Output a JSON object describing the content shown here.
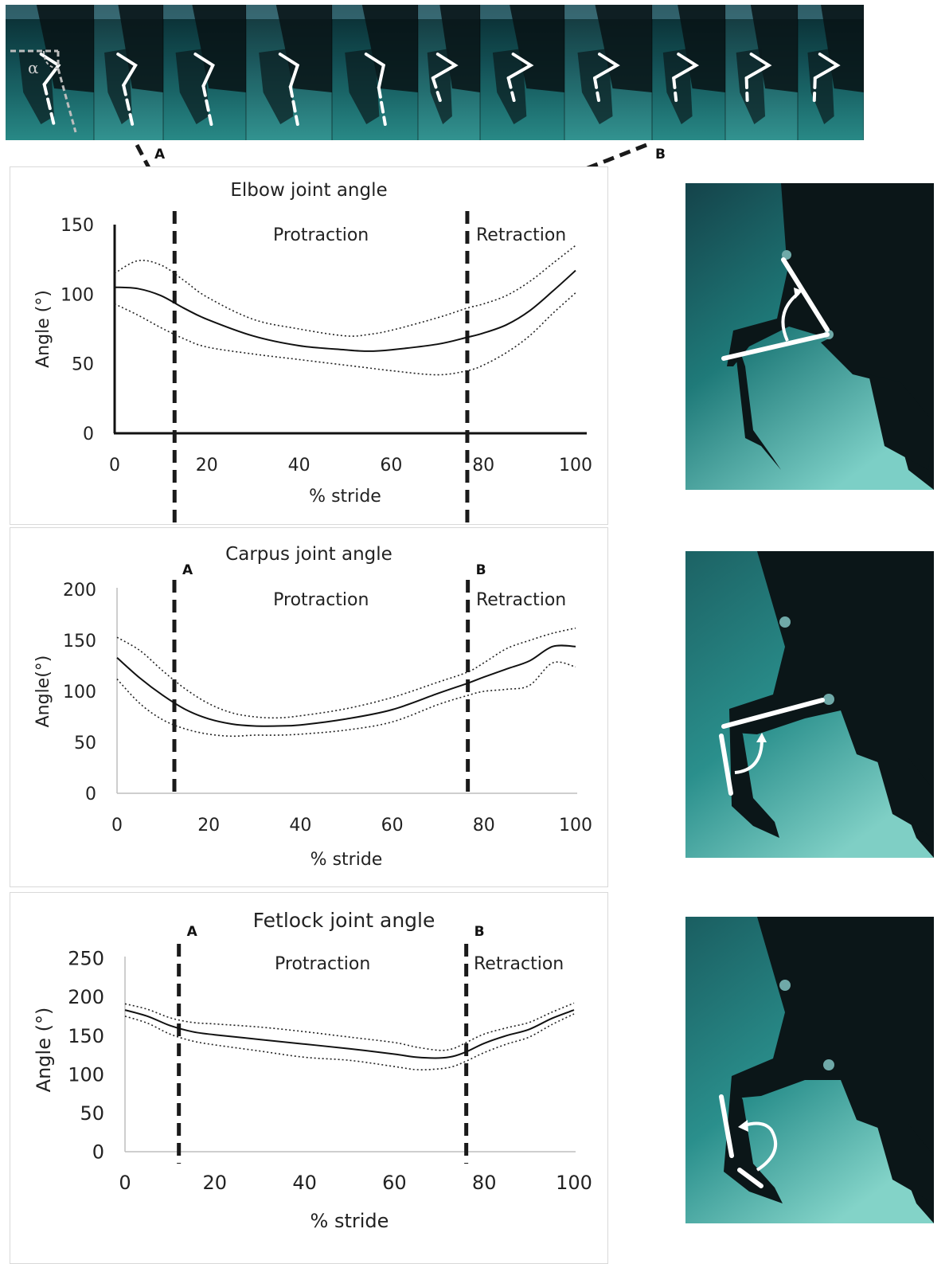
{
  "top_strip": {
    "alpha_symbol": "α",
    "marker_a": "A",
    "marker_b": "B",
    "frame_count": 11
  },
  "colors": {
    "water_dark": "#0b3438",
    "water_light": "#2a8f8c",
    "limb": "#0a1416",
    "overlay": "#ffffff",
    "mean_line": "#111111",
    "sd_line": "#222222"
  },
  "chart_data": [
    {
      "type": "line",
      "title": "Elbow joint angle",
      "xlabel": "% stride",
      "ylabel": "Angle (°)",
      "xlim": [
        0,
        100
      ],
      "ylim": [
        0,
        150
      ],
      "xticks": [
        "0",
        "20",
        "40",
        "60",
        "80",
        "100"
      ],
      "yticks": [
        "0",
        "50",
        "100",
        "150"
      ],
      "phase_labels": [
        "Protraction",
        "Retraction"
      ],
      "marker_labels": [
        "",
        ""
      ],
      "phase_lines_x": [
        13,
        76.5
      ],
      "series": [
        {
          "style": "solid",
          "x": [
            0,
            5,
            10,
            15,
            20,
            30,
            40,
            50,
            55,
            60,
            70,
            76.5,
            80,
            85,
            90,
            95,
            100
          ],
          "y": [
            105,
            104,
            99,
            90,
            82,
            70,
            63,
            60,
            59,
            60,
            64,
            69,
            72,
            78,
            88,
            102,
            117
          ]
        },
        {
          "style": "dotted",
          "x": [
            0,
            5,
            10,
            15,
            20,
            30,
            40,
            50,
            55,
            60,
            70,
            76.5,
            80,
            85,
            90,
            95,
            100
          ],
          "y": [
            115,
            124,
            121,
            110,
            98,
            82,
            75,
            70,
            71,
            74,
            83,
            90,
            93,
            99,
            109,
            122,
            135
          ]
        },
        {
          "style": "dotted",
          "x": [
            0,
            5,
            10,
            15,
            20,
            30,
            40,
            50,
            55,
            60,
            70,
            76.5,
            80,
            85,
            90,
            95,
            100
          ],
          "y": [
            93,
            85,
            76,
            68,
            62,
            57,
            53,
            49,
            47,
            45,
            42,
            45,
            49,
            58,
            70,
            86,
            101
          ]
        }
      ]
    },
    {
      "type": "line",
      "title": "Carpus joint angle",
      "xlabel": "% stride",
      "ylabel": "Angle(°)",
      "xlim": [
        0,
        100
      ],
      "ylim": [
        0,
        200
      ],
      "xticks": [
        "0",
        "20",
        "40",
        "60",
        "80",
        "100"
      ],
      "yticks": [
        "0",
        "50",
        "100",
        "150",
        "200"
      ],
      "phase_labels": [
        "Protraction",
        "Retraction"
      ],
      "marker_labels": [
        "A",
        "B"
      ],
      "phase_lines_x": [
        12.5,
        76.5
      ],
      "series": [
        {
          "style": "solid",
          "x": [
            0,
            5,
            10,
            15,
            20,
            25,
            30,
            35,
            40,
            50,
            60,
            70,
            76.5,
            80,
            85,
            90,
            95,
            100
          ],
          "y": [
            133,
            113,
            96,
            82,
            73,
            68,
            66,
            66,
            67,
            73,
            82,
            98,
            108,
            114,
            122,
            130,
            144,
            144
          ]
        },
        {
          "style": "dotted",
          "x": [
            0,
            5,
            10,
            15,
            20,
            25,
            30,
            35,
            40,
            50,
            60,
            70,
            76.5,
            80,
            85,
            90,
            95,
            100
          ],
          "y": [
            153,
            140,
            120,
            102,
            88,
            79,
            75,
            74,
            76,
            83,
            94,
            109,
            119,
            128,
            142,
            150,
            157,
            162
          ]
        },
        {
          "style": "dotted",
          "x": [
            0,
            5,
            10,
            15,
            20,
            25,
            30,
            35,
            40,
            50,
            60,
            70,
            76.5,
            80,
            85,
            90,
            95,
            100
          ],
          "y": [
            112,
            88,
            72,
            63,
            58,
            56,
            57,
            57,
            58,
            62,
            70,
            87,
            96,
            100,
            102,
            106,
            128,
            124
          ]
        }
      ]
    },
    {
      "type": "line",
      "title": "Fetlock joint angle",
      "xlabel": "% stride",
      "ylabel": "Angle (°)",
      "xlim": [
        0,
        100
      ],
      "ylim": [
        0,
        250
      ],
      "xticks": [
        "0",
        "20",
        "40",
        "60",
        "80",
        "100"
      ],
      "yticks": [
        "0",
        "50",
        "100",
        "150",
        "200",
        "250"
      ],
      "phase_labels": [
        "Protraction",
        "Retraction"
      ],
      "marker_labels": [
        "A",
        "B"
      ],
      "phase_lines_x": [
        12,
        76
      ],
      "series": [
        {
          "style": "solid",
          "x": [
            0,
            5,
            10,
            15,
            20,
            30,
            40,
            50,
            60,
            65,
            70,
            73,
            76,
            80,
            85,
            90,
            95,
            100
          ],
          "y": [
            183,
            175,
            163,
            155,
            151,
            145,
            139,
            133,
            126,
            122,
            121,
            123,
            129,
            140,
            150,
            158,
            172,
            183
          ]
        },
        {
          "style": "dotted",
          "x": [
            0,
            5,
            10,
            15,
            20,
            30,
            40,
            50,
            60,
            65,
            70,
            73,
            76,
            80,
            85,
            90,
            95,
            100
          ],
          "y": [
            191,
            184,
            173,
            167,
            165,
            161,
            155,
            148,
            141,
            135,
            131,
            133,
            141,
            152,
            160,
            167,
            180,
            192
          ]
        },
        {
          "style": "dotted",
          "x": [
            0,
            5,
            10,
            15,
            20,
            30,
            40,
            50,
            60,
            65,
            70,
            73,
            76,
            80,
            85,
            90,
            95,
            100
          ],
          "y": [
            175,
            166,
            152,
            143,
            138,
            130,
            122,
            118,
            110,
            106,
            107,
            110,
            117,
            128,
            139,
            148,
            164,
            178
          ]
        }
      ]
    }
  ]
}
